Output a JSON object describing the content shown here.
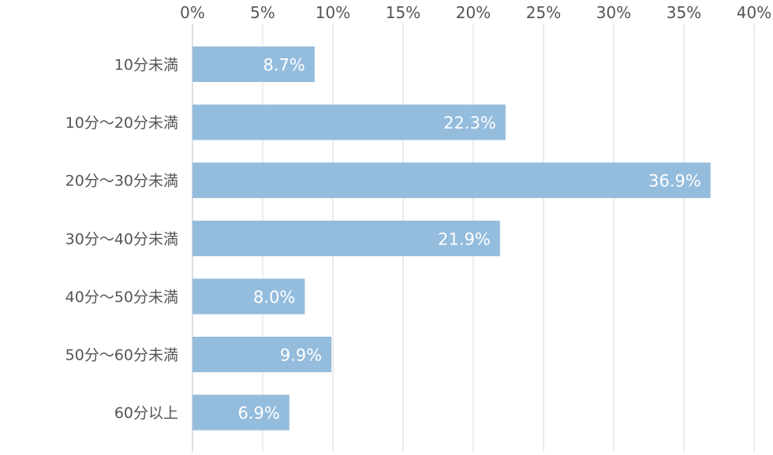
{
  "chart_data": {
    "type": "bar",
    "orientation": "horizontal",
    "title": "",
    "xlabel": "",
    "ylabel": "",
    "categories": [
      "10分未満",
      "10分～20分未満",
      "20分～30分未満",
      "30分～40分未満",
      "40分～50分未満",
      "50分～60分未満",
      "60分以上"
    ],
    "values": [
      8.7,
      22.3,
      36.9,
      21.9,
      8.0,
      9.9,
      6.9
    ],
    "value_labels": [
      "8.7%",
      "22.3%",
      "36.9%",
      "21.9%",
      "8.0%",
      "9.9%",
      "6.9%"
    ],
    "x_ticks": [
      0,
      5,
      10,
      15,
      20,
      25,
      30,
      35,
      40
    ],
    "x_tick_labels": [
      "0%",
      "5%",
      "10%",
      "15%",
      "20%",
      "25%",
      "30%",
      "35%",
      "40%"
    ],
    "xlim": [
      0,
      40
    ],
    "x_axis_position": "top",
    "grid": true,
    "legend": "none",
    "colors": {
      "bar": "#94bcdd",
      "grid": "#d9d9d9",
      "text": "#555555",
      "bar_label": "#ffffff"
    }
  }
}
